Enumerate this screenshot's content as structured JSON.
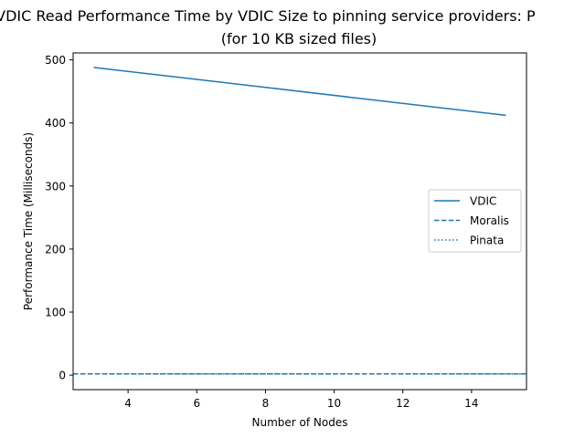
{
  "chart_data": {
    "type": "line",
    "title": "Average VDIC Read Performance Time by VDIC Size to pinning service providers: P",
    "subtitle": "(for 10 KB sized files)",
    "xlabel": "Number of Nodes",
    "ylabel": "Performance Time (Milliseconds)",
    "xlim": [
      2.4,
      15.6
    ],
    "ylim": [
      -23,
      511
    ],
    "x_ticks": [
      4,
      6,
      8,
      10,
      12,
      14
    ],
    "y_ticks": [
      0,
      100,
      200,
      300,
      400,
      500
    ],
    "grid": false,
    "legend_position": "center-right",
    "series": [
      {
        "name": "VDIC",
        "style": "solid",
        "color": "#1f77b4",
        "x": [
          3,
          15
        ],
        "y": [
          488,
          412
        ]
      },
      {
        "name": "Moralis",
        "style": "dashed",
        "color": "#1f77b4",
        "x": [
          2.4,
          15.6
        ],
        "y": [
          2,
          2
        ]
      },
      {
        "name": "Pinata",
        "style": "dotted",
        "color": "#1f77b4",
        "x": [
          2.4,
          15.6
        ],
        "y": [
          2,
          2
        ]
      }
    ]
  }
}
